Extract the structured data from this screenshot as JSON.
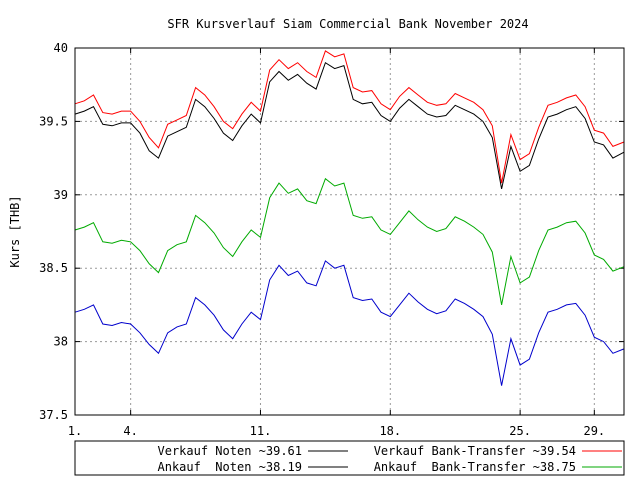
{
  "chart_data": {
    "type": "line",
    "title": "SFR Kursverlauf Siam Commercial Bank November 2024",
    "xlabel": "",
    "ylabel": "Kurs [THB]",
    "ylim": [
      37.5,
      40
    ],
    "xlim": [
      1,
      30.6
    ],
    "yticks": [
      37.5,
      38,
      38.5,
      39,
      39.5,
      40
    ],
    "ytick_labels": [
      "37.5",
      "38",
      "38.5",
      "39",
      "39.5",
      "40"
    ],
    "xticks": [
      1,
      4,
      11,
      18,
      25,
      29
    ],
    "xtick_labels": [
      "1.",
      "4.",
      "11.",
      "18.",
      "25.",
      "29."
    ],
    "grid": true,
    "legend_position": "bottom",
    "legend": [
      {
        "label": "Verkauf Noten ~39.61",
        "color": "#000000"
      },
      {
        "label": "Verkauf Bank-Transfer ~39.54",
        "color": "#ff0000"
      },
      {
        "label": "Ankauf  Noten ~38.19",
        "color": "#000000"
      },
      {
        "label": "Ankauf  Bank-Transfer ~38.75",
        "color": "#00aa00"
      }
    ],
    "series": [
      {
        "name": "Verkauf Noten ~39.61",
        "color": "#ff0000",
        "x": [
          1,
          1.5,
          2,
          2.5,
          3,
          3.5,
          4,
          4.5,
          5,
          5.5,
          6,
          6.5,
          7,
          7.5,
          8,
          8.5,
          9,
          9.5,
          10,
          10.5,
          11,
          11.5,
          12,
          12.5,
          13,
          13.5,
          14,
          14.5,
          15,
          15.5,
          16,
          16.5,
          17,
          17.5,
          18,
          18.5,
          19,
          19.5,
          20,
          20.5,
          21,
          21.5,
          22,
          22.5,
          23,
          23.5,
          24,
          24.5,
          25,
          25.5,
          26,
          26.5,
          27,
          27.5,
          28,
          28.5,
          29,
          29.5,
          30,
          30.6
        ],
        "values": [
          39.62,
          39.64,
          39.68,
          39.56,
          39.55,
          39.57,
          39.57,
          39.5,
          39.39,
          39.32,
          39.48,
          39.51,
          39.54,
          39.73,
          39.68,
          39.6,
          39.5,
          39.45,
          39.55,
          39.63,
          39.57,
          39.85,
          39.92,
          39.86,
          39.9,
          39.84,
          39.8,
          39.98,
          39.94,
          39.96,
          39.73,
          39.7,
          39.71,
          39.62,
          39.58,
          39.67,
          39.73,
          39.68,
          39.63,
          39.61,
          39.62,
          39.69,
          39.66,
          39.63,
          39.58,
          39.47,
          39.08,
          39.41,
          39.24,
          39.28,
          39.46,
          39.61,
          39.63,
          39.66,
          39.68,
          39.6,
          39.44,
          39.42,
          39.33,
          39.36
        ]
      },
      {
        "name": "Verkauf Bank-Transfer ~39.54",
        "color": "#000000",
        "x": [
          1,
          1.5,
          2,
          2.5,
          3,
          3.5,
          4,
          4.5,
          5,
          5.5,
          6,
          6.5,
          7,
          7.5,
          8,
          8.5,
          9,
          9.5,
          10,
          10.5,
          11,
          11.5,
          12,
          12.5,
          13,
          13.5,
          14,
          14.5,
          15,
          15.5,
          16,
          16.5,
          17,
          17.5,
          18,
          18.5,
          19,
          19.5,
          20,
          20.5,
          21,
          21.5,
          22,
          22.5,
          23,
          23.5,
          24,
          24.5,
          25,
          25.5,
          26,
          26.5,
          27,
          27.5,
          28,
          28.5,
          29,
          29.5,
          30,
          30.6
        ],
        "values": [
          39.55,
          39.57,
          39.6,
          39.48,
          39.47,
          39.49,
          39.49,
          39.42,
          39.3,
          39.25,
          39.4,
          39.43,
          39.46,
          39.65,
          39.6,
          39.52,
          39.42,
          39.37,
          39.47,
          39.55,
          39.49,
          39.77,
          39.84,
          39.78,
          39.82,
          39.76,
          39.72,
          39.9,
          39.86,
          39.88,
          39.65,
          39.62,
          39.63,
          39.54,
          39.5,
          39.59,
          39.65,
          39.6,
          39.55,
          39.53,
          39.54,
          39.61,
          39.58,
          39.55,
          39.5,
          39.39,
          39.04,
          39.33,
          39.16,
          39.2,
          39.38,
          39.53,
          39.55,
          39.58,
          39.6,
          39.52,
          39.36,
          39.34,
          39.25,
          39.29
        ]
      },
      {
        "name": "Ankauf  Noten ~38.19",
        "color": "#0000cc",
        "x": [
          1,
          1.5,
          2,
          2.5,
          3,
          3.5,
          4,
          4.5,
          5,
          5.5,
          6,
          6.5,
          7,
          7.5,
          8,
          8.5,
          9,
          9.5,
          10,
          10.5,
          11,
          11.5,
          12,
          12.5,
          13,
          13.5,
          14,
          14.5,
          15,
          15.5,
          16,
          16.5,
          17,
          17.5,
          18,
          18.5,
          19,
          19.5,
          20,
          20.5,
          21,
          21.5,
          22,
          22.5,
          23,
          23.5,
          24,
          24.5,
          25,
          25.5,
          26,
          26.5,
          27,
          27.5,
          28,
          28.5,
          29,
          29.5,
          30,
          30.6
        ],
        "values": [
          38.2,
          38.22,
          38.25,
          38.12,
          38.11,
          38.13,
          38.12,
          38.06,
          37.98,
          37.92,
          38.06,
          38.1,
          38.12,
          38.3,
          38.25,
          38.18,
          38.08,
          38.02,
          38.12,
          38.2,
          38.15,
          38.42,
          38.52,
          38.45,
          38.48,
          38.4,
          38.38,
          38.55,
          38.5,
          38.52,
          38.3,
          38.28,
          38.29,
          38.2,
          38.17,
          38.25,
          38.33,
          38.27,
          38.22,
          38.19,
          38.21,
          38.29,
          38.26,
          38.22,
          38.17,
          38.05,
          37.7,
          38.02,
          37.84,
          37.88,
          38.06,
          38.2,
          38.22,
          38.25,
          38.26,
          38.18,
          38.03,
          38.0,
          37.92,
          37.95
        ]
      },
      {
        "name": "Ankauf  Bank-Transfer ~38.75",
        "color": "#00aa00",
        "x": [
          1,
          1.5,
          2,
          2.5,
          3,
          3.5,
          4,
          4.5,
          5,
          5.5,
          6,
          6.5,
          7,
          7.5,
          8,
          8.5,
          9,
          9.5,
          10,
          10.5,
          11,
          11.5,
          12,
          12.5,
          13,
          13.5,
          14,
          14.5,
          15,
          15.5,
          16,
          16.5,
          17,
          17.5,
          18,
          18.5,
          19,
          19.5,
          20,
          20.5,
          21,
          21.5,
          22,
          22.5,
          23,
          23.5,
          24,
          24.5,
          25,
          25.5,
          26,
          26.5,
          27,
          27.5,
          28,
          28.5,
          29,
          29.5,
          30,
          30.6
        ],
        "values": [
          38.76,
          38.78,
          38.81,
          38.68,
          38.67,
          38.69,
          38.68,
          38.62,
          38.53,
          38.47,
          38.62,
          38.66,
          38.68,
          38.86,
          38.81,
          38.74,
          38.64,
          38.58,
          38.68,
          38.76,
          38.71,
          38.98,
          39.08,
          39.01,
          39.04,
          38.96,
          38.94,
          39.11,
          39.06,
          39.08,
          38.86,
          38.84,
          38.85,
          38.76,
          38.73,
          38.81,
          38.89,
          38.83,
          38.78,
          38.75,
          38.77,
          38.85,
          38.82,
          38.78,
          38.73,
          38.61,
          38.25,
          38.58,
          38.4,
          38.44,
          38.62,
          38.76,
          38.78,
          38.81,
          38.82,
          38.74,
          38.59,
          38.56,
          38.48,
          38.51
        ]
      }
    ]
  }
}
